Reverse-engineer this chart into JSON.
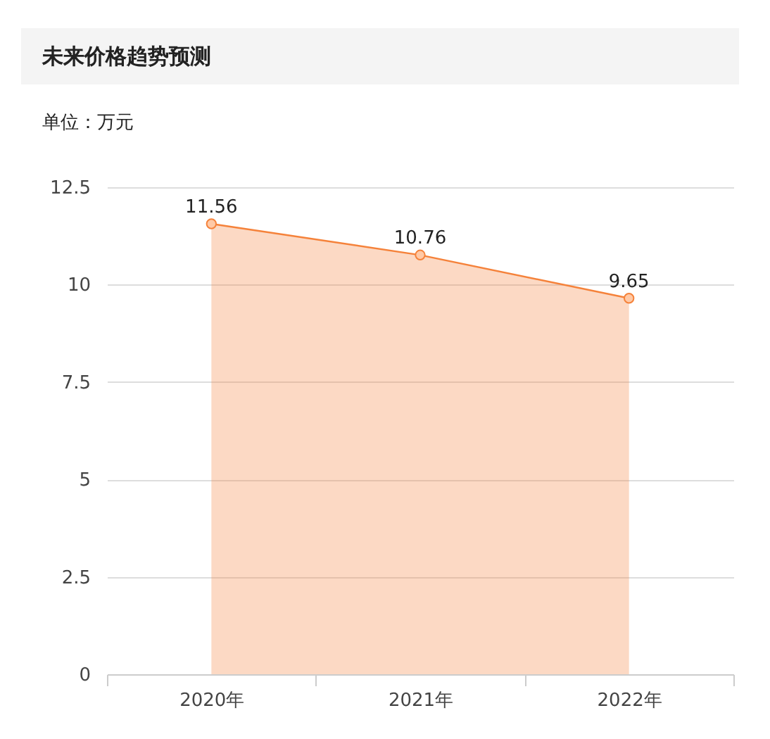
{
  "chart_data": {
    "type": "area",
    "title": "未来价格趋势预测",
    "ylabel": "单位：万元",
    "categories": [
      "2020年",
      "2021年",
      "2022年"
    ],
    "series": [
      {
        "color": "#f5823a",
        "values": [
          11.56,
          10.76,
          9.65
        ]
      }
    ],
    "ylim": [
      0,
      12.5
    ],
    "yticks": [
      0,
      2.5,
      5,
      7.5,
      10,
      12.5
    ],
    "grid": "y",
    "marker": "circle",
    "data_labels": true
  }
}
